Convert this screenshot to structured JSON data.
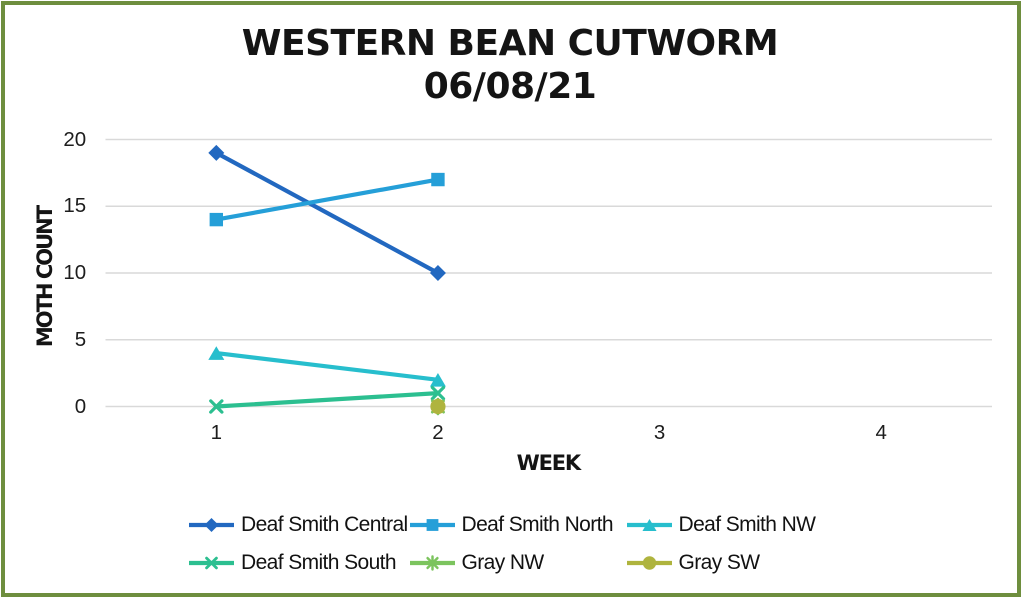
{
  "chart_data": {
    "type": "line",
    "title": "WESTERN BEAN CUTWORM",
    "subtitle": "06/08/21",
    "xlabel": "WEEK",
    "ylabel": "MOTH COUNT",
    "x_ticks": [
      "1",
      "2",
      "3",
      "4"
    ],
    "y_ticks": [
      "0",
      "5",
      "10",
      "15",
      "20"
    ],
    "ylim": [
      0,
      20
    ],
    "xlim_weeks": [
      1,
      4
    ],
    "grid": "horizontal-only",
    "legend_position": "bottom",
    "series": [
      {
        "name": "Deaf Smith Central",
        "color": "#2268C0",
        "marker": "diamond",
        "points": [
          {
            "week": 1,
            "count": 19
          },
          {
            "week": 2,
            "count": 10
          }
        ]
      },
      {
        "name": "Deaf Smith North",
        "color": "#259FD8",
        "marker": "square",
        "points": [
          {
            "week": 1,
            "count": 14
          },
          {
            "week": 2,
            "count": 17
          }
        ]
      },
      {
        "name": "Deaf Smith NW",
        "color": "#27BECD",
        "marker": "triangle",
        "points": [
          {
            "week": 1,
            "count": 4
          },
          {
            "week": 2,
            "count": 2
          }
        ]
      },
      {
        "name": "Deaf Smith South",
        "color": "#2CBF90",
        "marker": "x",
        "points": [
          {
            "week": 1,
            "count": 0
          },
          {
            "week": 2,
            "count": 1
          }
        ]
      },
      {
        "name": "Gray NW",
        "color": "#7CC45E",
        "marker": "star",
        "points": [
          {
            "week": 2,
            "count": 0
          }
        ]
      },
      {
        "name": "Gray SW",
        "color": "#AFB43E",
        "marker": "circle",
        "points": [
          {
            "week": 2,
            "count": 0
          }
        ]
      }
    ],
    "colors": {
      "frame_border": "#6E8E3E",
      "gridline": "#D9D9D9",
      "text": "#141414"
    }
  }
}
